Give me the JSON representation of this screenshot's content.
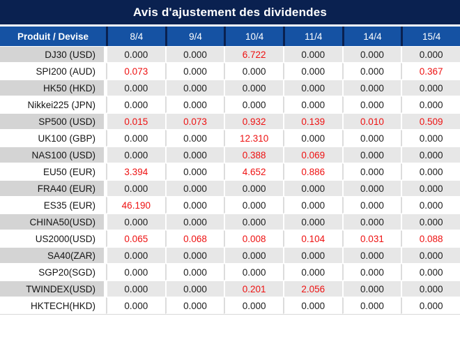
{
  "title": "Avis d'ajustement des dividendes",
  "colors": {
    "title_bar_bg": "#0a2150",
    "header_bg": "#1552a3",
    "header_divider": "#0a2150",
    "striped_row_product_bg": "#d4d4d4",
    "striped_row_value_bg": "#e7e7e7",
    "separator_on_white_rows": "#dcdcdc",
    "nonzero_value_red": "#ee1111",
    "value_text_dark": "#1c1c1c"
  },
  "table": {
    "header": {
      "product_label": "Produit / Devise",
      "dates": [
        "8/4",
        "9/4",
        "10/4",
        "11/4",
        "14/4",
        "15/4"
      ]
    },
    "rows": [
      {
        "product": "DJ30 (USD)",
        "values": [
          "0.000",
          "0.000",
          "6.722",
          "0.000",
          "0.000",
          "0.000"
        ]
      },
      {
        "product": "SPI200 (AUD)",
        "values": [
          "0.073",
          "0.000",
          "0.000",
          "0.000",
          "0.000",
          "0.367"
        ]
      },
      {
        "product": "HK50 (HKD)",
        "values": [
          "0.000",
          "0.000",
          "0.000",
          "0.000",
          "0.000",
          "0.000"
        ]
      },
      {
        "product": "Nikkei225 (JPN)",
        "values": [
          "0.000",
          "0.000",
          "0.000",
          "0.000",
          "0.000",
          "0.000"
        ]
      },
      {
        "product": "SP500 (USD)",
        "values": [
          "0.015",
          "0.073",
          "0.932",
          "0.139",
          "0.010",
          "0.509"
        ]
      },
      {
        "product": "UK100 (GBP)",
        "values": [
          "0.000",
          "0.000",
          "12.310",
          "0.000",
          "0.000",
          "0.000"
        ]
      },
      {
        "product": "NAS100 (USD)",
        "values": [
          "0.000",
          "0.000",
          "0.388",
          "0.069",
          "0.000",
          "0.000"
        ]
      },
      {
        "product": "EU50 (EUR)",
        "values": [
          "3.394",
          "0.000",
          "4.652",
          "0.886",
          "0.000",
          "0.000"
        ]
      },
      {
        "product": "FRA40 (EUR)",
        "values": [
          "0.000",
          "0.000",
          "0.000",
          "0.000",
          "0.000",
          "0.000"
        ]
      },
      {
        "product": "ES35 (EUR)",
        "values": [
          "46.190",
          "0.000",
          "0.000",
          "0.000",
          "0.000",
          "0.000"
        ]
      },
      {
        "product": "CHINA50(USD)",
        "values": [
          "0.000",
          "0.000",
          "0.000",
          "0.000",
          "0.000",
          "0.000"
        ]
      },
      {
        "product": "US2000(USD)",
        "values": [
          "0.065",
          "0.068",
          "0.008",
          "0.104",
          "0.031",
          "0.088"
        ]
      },
      {
        "product": "SA40(ZAR)",
        "values": [
          "0.000",
          "0.000",
          "0.000",
          "0.000",
          "0.000",
          "0.000"
        ]
      },
      {
        "product": "SGP20(SGD)",
        "values": [
          "0.000",
          "0.000",
          "0.000",
          "0.000",
          "0.000",
          "0.000"
        ]
      },
      {
        "product": "TWINDEX(USD)",
        "values": [
          "0.000",
          "0.000",
          "0.201",
          "2.056",
          "0.000",
          "0.000"
        ]
      },
      {
        "product": "HKTECH(HKD)",
        "values": [
          "0.000",
          "0.000",
          "0.000",
          "0.000",
          "0.000",
          "0.000"
        ]
      }
    ]
  }
}
